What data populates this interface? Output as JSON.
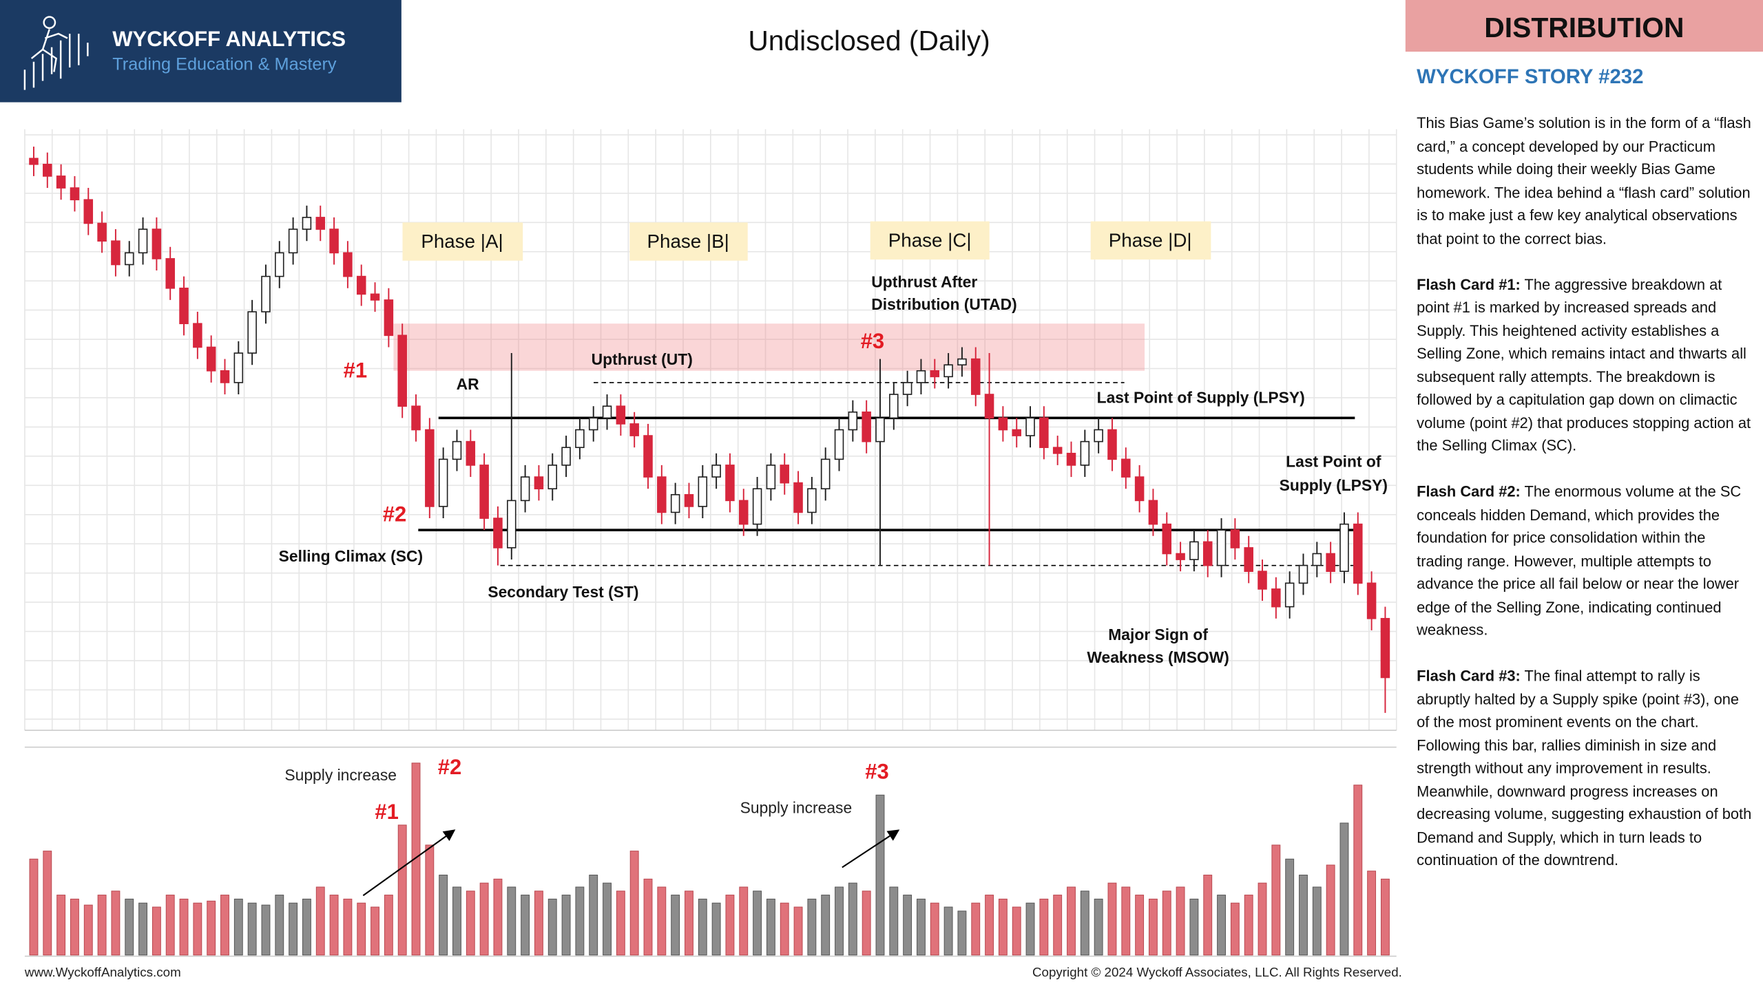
{
  "header": {
    "brand": "WYCKOFF ANALYTICS",
    "tagline": "Trading Education & Mastery",
    "badge": "DISTRIBUTION",
    "story_title": "WYCKOFF STORY #232"
  },
  "chart_data": {
    "type": "candlestick",
    "title": "Undisclosed (Daily)",
    "grid": true,
    "ylim": [
      0,
      100
    ],
    "vlim": [
      0,
      100
    ],
    "up_color": "#ffffff",
    "down_color": "#d7263d",
    "up_volume_color": "#8c8c8c",
    "down_volume_color": "#e0727a",
    "open": [
      96,
      95,
      93,
      91,
      89,
      85,
      82,
      78,
      80,
      84,
      79,
      74,
      68,
      64,
      60,
      58,
      63,
      70,
      76,
      80,
      84,
      86,
      84,
      80,
      76,
      73,
      72,
      66,
      54,
      50,
      37,
      45,
      48,
      44,
      35,
      30,
      38,
      42,
      40,
      44,
      47,
      50,
      52,
      54,
      51,
      49,
      42,
      36,
      39,
      37,
      42,
      44,
      38,
      34,
      40,
      44,
      41,
      36,
      40,
      45,
      50,
      53,
      48,
      52,
      56,
      58,
      60,
      59,
      61,
      62,
      56,
      52,
      50,
      49,
      52,
      47,
      46,
      44,
      48,
      50,
      45,
      42,
      38,
      34,
      29,
      28,
      31,
      27,
      33,
      30,
      26,
      23,
      20,
      24,
      27,
      29,
      26,
      34,
      24,
      18
    ],
    "high": [
      98,
      97,
      95,
      93,
      91,
      87,
      84,
      82,
      86,
      86,
      81,
      76,
      70,
      66,
      62,
      65,
      72,
      78,
      82,
      86,
      88,
      88,
      86,
      82,
      78,
      75,
      74,
      68,
      56,
      52,
      47,
      50,
      50,
      46,
      37,
      63,
      44,
      44,
      46,
      49,
      52,
      54,
      56,
      56,
      53,
      51,
      44,
      41,
      41,
      44,
      46,
      46,
      40,
      42,
      46,
      46,
      43,
      42,
      47,
      52,
      55,
      55,
      62,
      58,
      60,
      62,
      62,
      63,
      64,
      64,
      63,
      54,
      52,
      54,
      54,
      49,
      48,
      50,
      52,
      52,
      47,
      44,
      40,
      36,
      31,
      33,
      33,
      35,
      35,
      32,
      28,
      25,
      26,
      29,
      31,
      31,
      36,
      36,
      26,
      20
    ],
    "low": [
      93,
      91,
      89,
      87,
      83,
      80,
      76,
      76,
      78,
      77,
      72,
      66,
      62,
      58,
      56,
      56,
      61,
      68,
      74,
      78,
      82,
      82,
      78,
      74,
      71,
      70,
      64,
      52,
      48,
      35,
      35,
      43,
      42,
      33,
      27,
      28,
      36,
      38,
      38,
      42,
      45,
      48,
      50,
      49,
      47,
      40,
      34,
      34,
      35,
      35,
      40,
      36,
      32,
      32,
      38,
      39,
      34,
      34,
      38,
      43,
      48,
      46,
      27,
      50,
      54,
      56,
      57,
      57,
      59,
      54,
      27,
      48,
      47,
      47,
      45,
      44,
      42,
      42,
      46,
      43,
      40,
      36,
      32,
      27,
      26,
      26,
      25,
      25,
      28,
      24,
      21,
      18,
      18,
      22,
      25,
      24,
      24,
      22,
      16,
      2
    ],
    "close": [
      95,
      93,
      91,
      89,
      85,
      82,
      78,
      80,
      84,
      79,
      74,
      68,
      64,
      60,
      58,
      63,
      70,
      76,
      80,
      84,
      86,
      84,
      80,
      76,
      73,
      72,
      66,
      54,
      50,
      37,
      45,
      48,
      44,
      35,
      30,
      38,
      42,
      40,
      44,
      47,
      50,
      52,
      54,
      51,
      49,
      42,
      36,
      39,
      37,
      42,
      44,
      38,
      34,
      40,
      44,
      41,
      36,
      40,
      45,
      50,
      53,
      48,
      52,
      56,
      58,
      60,
      59,
      61,
      62,
      56,
      52,
      50,
      49,
      52,
      47,
      46,
      44,
      48,
      50,
      45,
      42,
      38,
      34,
      29,
      28,
      31,
      27,
      33,
      30,
      26,
      23,
      20,
      24,
      27,
      29,
      26,
      34,
      24,
      18,
      8
    ],
    "volume": [
      48,
      52,
      30,
      28,
      25,
      30,
      32,
      28,
      26,
      24,
      30,
      28,
      26,
      27,
      30,
      28,
      26,
      25,
      30,
      26,
      28,
      34,
      30,
      28,
      26,
      24,
      30,
      65,
      96,
      55,
      40,
      34,
      32,
      36,
      38,
      34,
      30,
      32,
      28,
      30,
      34,
      40,
      36,
      32,
      52,
      38,
      34,
      30,
      32,
      28,
      26,
      30,
      34,
      32,
      28,
      26,
      24,
      28,
      30,
      34,
      36,
      32,
      80,
      34,
      30,
      28,
      26,
      24,
      22,
      26,
      30,
      28,
      24,
      26,
      28,
      30,
      34,
      32,
      28,
      36,
      34,
      30,
      28,
      32,
      34,
      28,
      40,
      30,
      26,
      30,
      36,
      55,
      48,
      40,
      34,
      45,
      66,
      85,
      42,
      38
    ],
    "levels": {
      "resistance": 52,
      "support": 33,
      "ut_high": 58,
      "st_low": 27
    },
    "zone": [
      60,
      68
    ],
    "phases": [
      "Phase |A|",
      "Phase |B|",
      "Phase |C|",
      "Phase |D|"
    ],
    "markers": [
      "#1",
      "#2",
      "#3"
    ],
    "annotations": {
      "ar": "AR",
      "ut": "Upthrust (UT)",
      "utad": [
        "Upthrust After",
        "Distribution (UTAD)"
      ],
      "lpsy1": "Last Point of Supply  (LPSY)",
      "lpsy2": [
        "Last Point of",
        "Supply  (LPSY)"
      ],
      "sc": "Selling Climax (SC)",
      "st": "Secondary Test (ST)",
      "msow": [
        "Major Sign of",
        "Weakness (MSOW)"
      ]
    },
    "volume_notes": [
      "Supply increase",
      "Supply increase"
    ]
  },
  "story": {
    "intro": "This Bias Game’s solution is in the form of a “flash card,” a concept developed by our Practicum students while doing their weekly Bias Game homework. The idea behind a “flash card” solution is to make just a few key analytical observations that point to the correct bias.",
    "cards": [
      {
        "label": "Flash Card #1:",
        "text": "The aggressive breakdown at point #1 is marked by increased spreads and Supply. This heightened activity establishes a Selling Zone, which remains intact and thwarts all subsequent rally attempts. The breakdown is followed by a capitulation gap down on climactic volume (point #2)  that produces stopping action at the Selling Climax (SC)."
      },
      {
        "label": "Flash Card #2:",
        "text": "The enormous volume at the SC conceals hidden Demand, which provides the foundation for price consolidation within the trading range. However, multiple attempts to advance the price all fail below or near the lower edge of the Selling Zone, indicating continued weakness."
      },
      {
        "label": "Flash Card #3:",
        "text": "The final attempt to rally is abruptly halted by a Supply spike (point #3), one of the most prominent events on the chart. Following this bar, rallies diminish in size and strength without any improvement in results. Meanwhile, downward progress increases on decreasing volume, suggesting exhaustion of both Demand and Supply, which in turn leads to continuation of the downtrend."
      }
    ]
  },
  "footer": {
    "site": "www.WyckoffAnalytics.com",
    "copyright": "Copyright © 2024 Wyckoff Associates, LLC. All Rights Reserved."
  }
}
